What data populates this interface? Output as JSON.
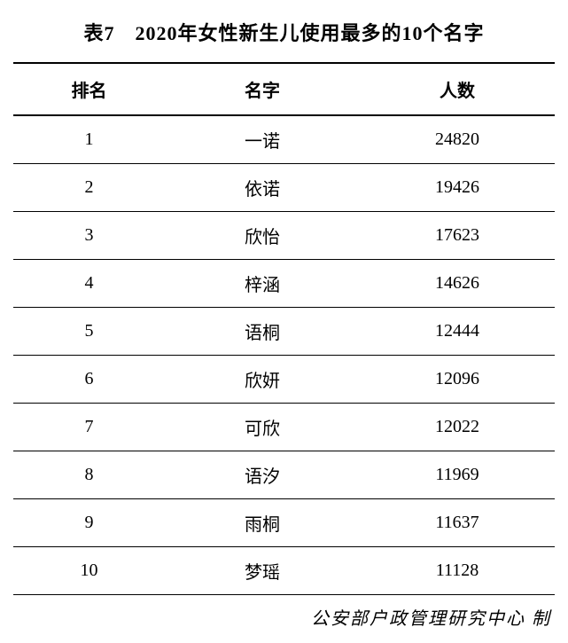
{
  "title": "表7　2020年女性新生儿使用最多的10个名字",
  "columns": [
    "排名",
    "名字",
    "人数"
  ],
  "rows": [
    [
      "1",
      "一诺",
      "24820"
    ],
    [
      "2",
      "依诺",
      "19426"
    ],
    [
      "3",
      "欣怡",
      "17623"
    ],
    [
      "4",
      "梓涵",
      "14626"
    ],
    [
      "5",
      "语桐",
      "12444"
    ],
    [
      "6",
      "欣妍",
      "12096"
    ],
    [
      "7",
      "可欣",
      "12022"
    ],
    [
      "8",
      "语汐",
      "11969"
    ],
    [
      "9",
      "雨桐",
      "11637"
    ],
    [
      "10",
      "梦瑶",
      "11128"
    ]
  ],
  "footer": "公安部户政管理研究中心  制",
  "styling": {
    "background_color": "#ffffff",
    "text_color": "#000000",
    "title_fontsize": 22,
    "cell_fontsize": 20,
    "footer_fontsize": 20,
    "header_border_width": 2,
    "row_border_width": 1,
    "column_widths_pct": [
      28,
      36,
      36
    ],
    "column_align": [
      "center",
      "center",
      "center"
    ],
    "font_family": "SimSun",
    "footer_font_family": "KaiTi"
  }
}
